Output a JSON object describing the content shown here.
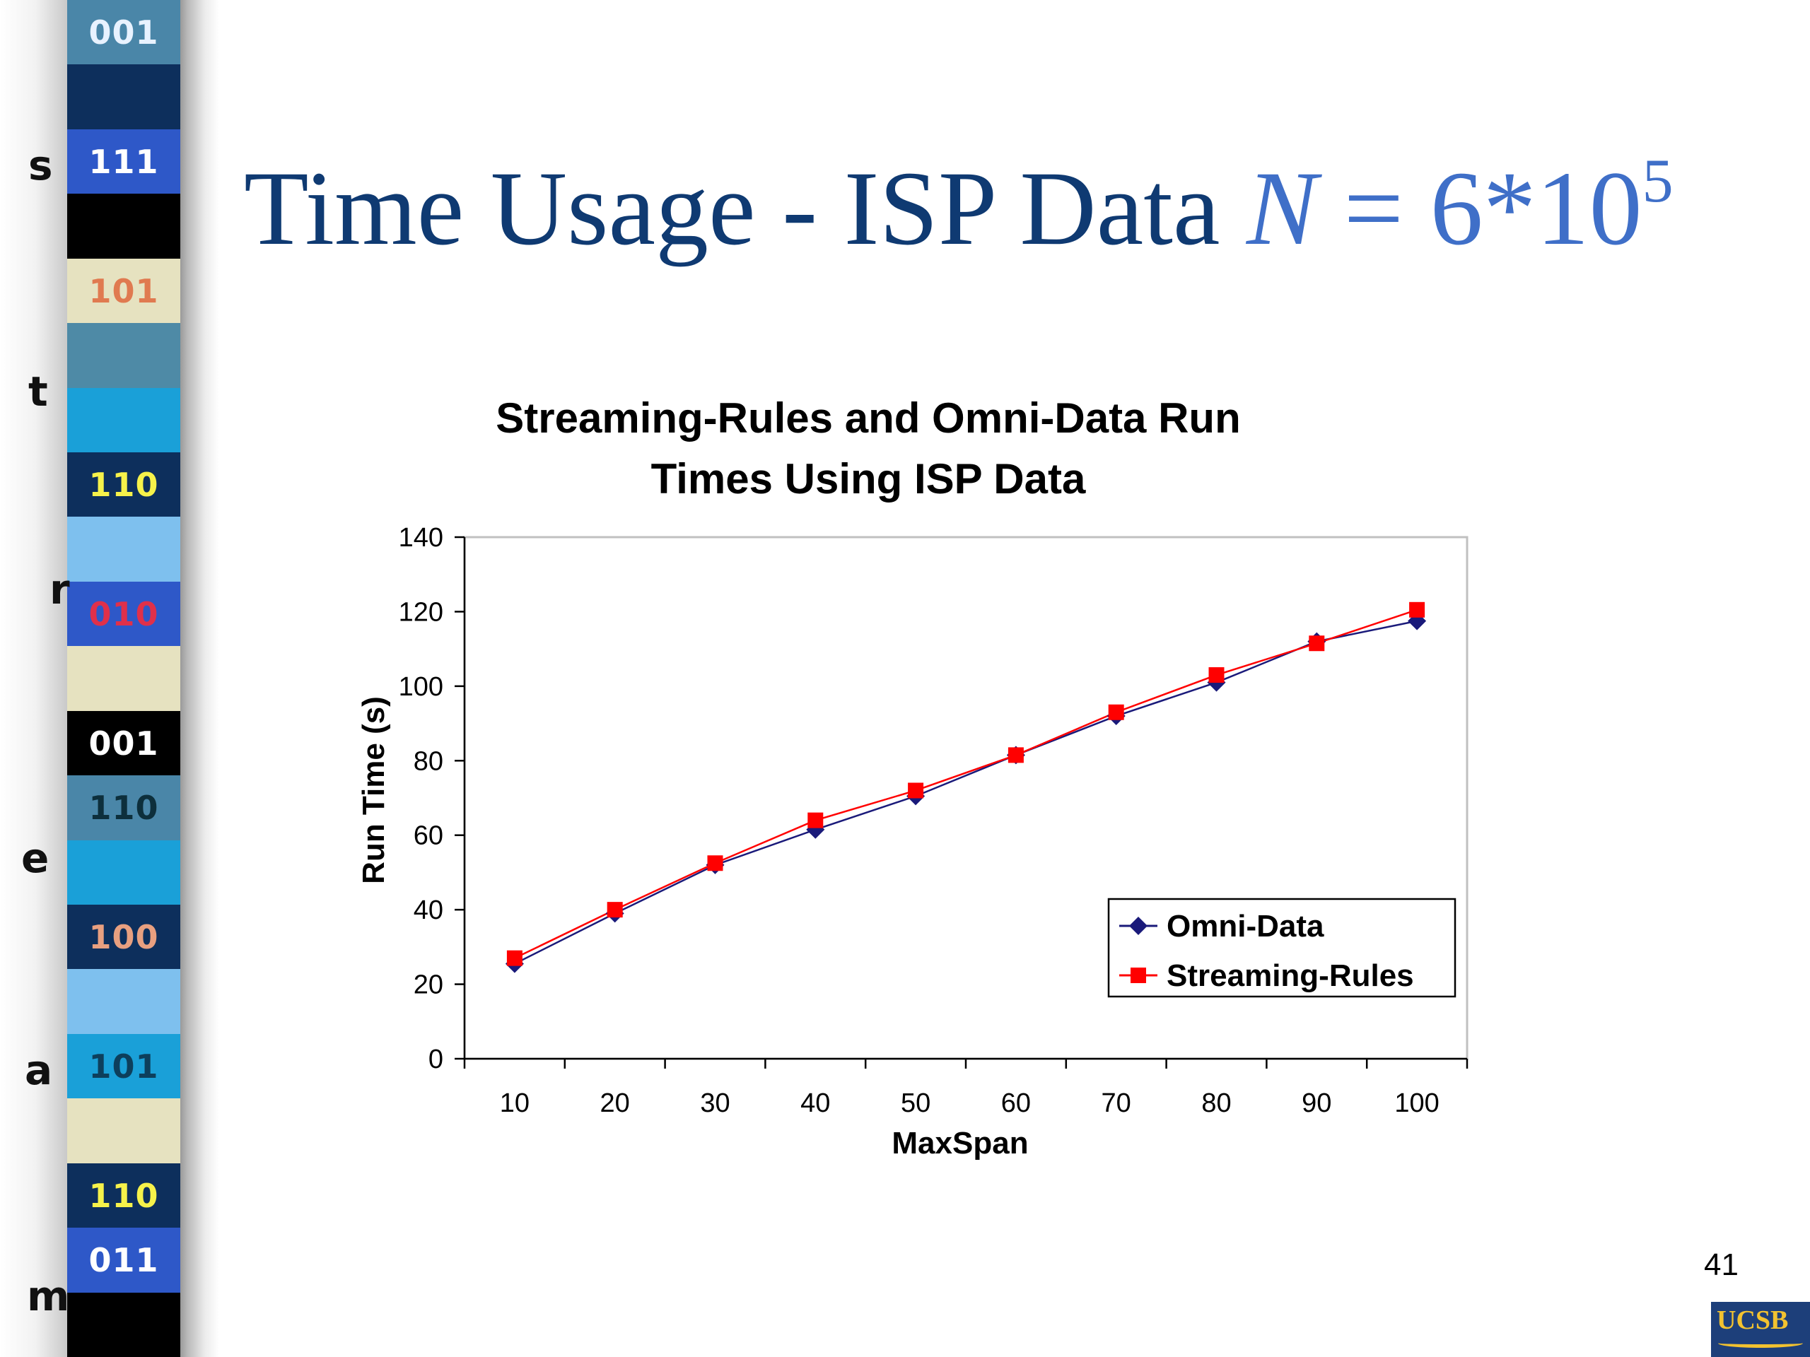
{
  "slide": {
    "title_text": "Time Usage - ISP Data ",
    "formula_var": "N",
    "formula_eq": " = 6*10",
    "formula_exp": "5",
    "page_number": "41",
    "logo_text": "UCSB"
  },
  "side_strip": {
    "letters": [
      "s",
      "t",
      "r",
      "e",
      "a",
      "m"
    ],
    "bands": [
      {
        "label": "001",
        "bg": "#4a86a8",
        "fg": "#e8f2ff"
      },
      {
        "label": "",
        "bg": "#0d2f5c",
        "fg": "#ffffff"
      },
      {
        "label": "111",
        "bg": "#2e58c8",
        "fg": "#ffffff"
      },
      {
        "label": "",
        "bg": "#000000",
        "fg": "#ffffff"
      },
      {
        "label": "101",
        "bg": "#e6e2c0",
        "fg": "#e07a50"
      },
      {
        "label": "",
        "bg": "#4e8aa6",
        "fg": "#ffffff"
      },
      {
        "label": "",
        "bg": "#1aa0d8",
        "fg": "#ffffff"
      },
      {
        "label": "110",
        "bg": "#0d2f5c",
        "fg": "#f6f24a"
      },
      {
        "label": "",
        "bg": "#7ec0ee",
        "fg": "#ffffff"
      },
      {
        "label": "010",
        "bg": "#2e58c8",
        "fg": "#e0304a"
      },
      {
        "label": "",
        "bg": "#e6e2c0",
        "fg": "#ffffff"
      },
      {
        "label": "001",
        "bg": "#000000",
        "fg": "#ffffff"
      },
      {
        "label": "110",
        "bg": "#4a86a8",
        "fg": "#0d2f3c"
      },
      {
        "label": "",
        "bg": "#1aa0d8",
        "fg": "#ffffff"
      },
      {
        "label": "100",
        "bg": "#0d2f5c",
        "fg": "#e8a080"
      },
      {
        "label": "",
        "bg": "#7ec0ee",
        "fg": "#ffffff"
      },
      {
        "label": "101",
        "bg": "#1aa0d8",
        "fg": "#0d3f5c"
      },
      {
        "label": "",
        "bg": "#e6e2c0",
        "fg": "#ffffff"
      },
      {
        "label": "110",
        "bg": "#0d2f5c",
        "fg": "#f6f24a"
      },
      {
        "label": "011",
        "bg": "#2e58c8",
        "fg": "#ffffff"
      },
      {
        "label": "",
        "bg": "#000000",
        "fg": "#ffffff"
      }
    ]
  },
  "chart_data": {
    "type": "line",
    "title_lines": [
      "Streaming-Rules and Omni-Data Run",
      "Times Using ISP Data"
    ],
    "xlabel": "MaxSpan",
    "ylabel": "Run Time (s)",
    "categories": [
      "10",
      "20",
      "30",
      "40",
      "50",
      "60",
      "70",
      "80",
      "90",
      "100"
    ],
    "ylim": [
      0,
      140
    ],
    "yticks": [
      "0",
      "20",
      "40",
      "60",
      "80",
      "100",
      "120",
      "140"
    ],
    "grid": false,
    "legend_position": "bottom-right",
    "series": [
      {
        "name": "Omni-Data",
        "marker": "diamond",
        "color": "#1a1a7a",
        "values": [
          25.5,
          39,
          52,
          61.5,
          70.5,
          81.5,
          92,
          101,
          112,
          117.5
        ]
      },
      {
        "name": "Streaming-Rules",
        "marker": "square",
        "color": "#ff0000",
        "values": [
          27,
          40,
          52.5,
          64,
          72,
          81.5,
          93,
          103,
          111.5,
          120.5
        ]
      }
    ]
  }
}
